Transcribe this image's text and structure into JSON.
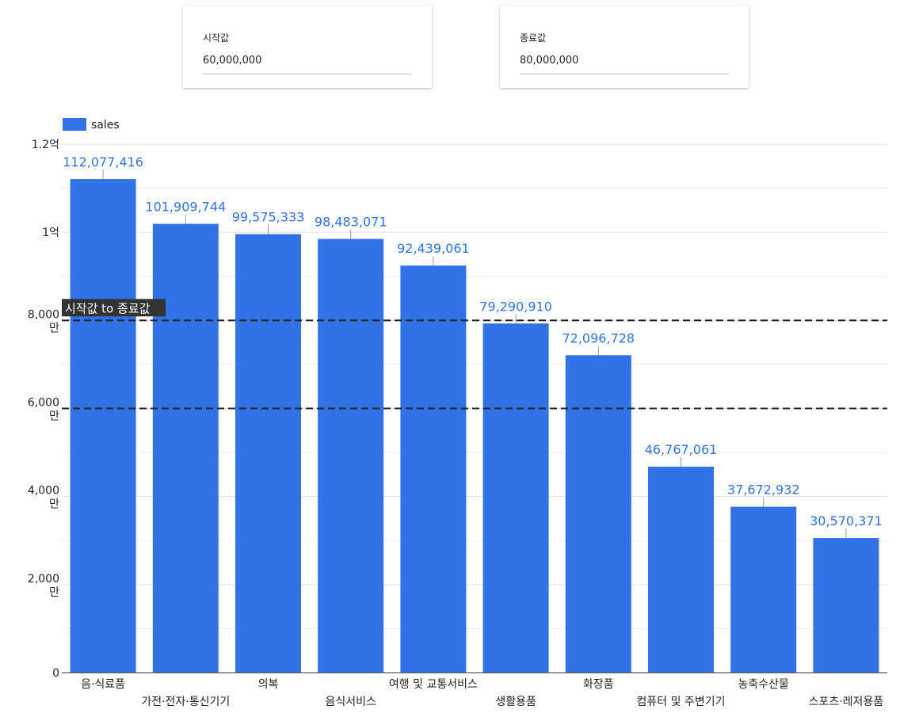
{
  "controls": {
    "start": {
      "label": "시작값",
      "value": "60,000,000"
    },
    "end": {
      "label": "종료값",
      "value": "80,000,000"
    }
  },
  "colors": {
    "bar": "#3173e7",
    "data_label": "#3173e7",
    "grid": "#e0e0e0",
    "axis": "#333333",
    "range_line": "#222222"
  },
  "chart_data": {
    "type": "bar",
    "legend": {
      "position": "top-left",
      "entries": [
        "sales"
      ]
    },
    "categories": [
      "음·식료품",
      "가전·전자·통신기기",
      "의복",
      "음식서비스",
      "여행 및 교통서비스",
      "생활용품",
      "화장품",
      "컴퓨터 및 주변기기",
      "농축수산물",
      "스포츠·레저용품"
    ],
    "series": [
      {
        "name": "sales",
        "values": [
          112077416,
          101909744,
          99575333,
          98483071,
          92439061,
          79290910,
          72096728,
          46767061,
          37672932,
          30570371
        ]
      }
    ],
    "value_labels": [
      "112,077,416",
      "101,909,744",
      "99,575,333",
      "98,483,071",
      "92,439,061",
      "79,290,910",
      "72,096,728",
      "46,767,061",
      "37,672,932",
      "30,570,371"
    ],
    "ylim": [
      0,
      120000000
    ],
    "yticks": [
      {
        "value": 0,
        "label": [
          "0"
        ]
      },
      {
        "value": 20000000,
        "label": [
          "2,000",
          "만"
        ]
      },
      {
        "value": 40000000,
        "label": [
          "4,000",
          "만"
        ]
      },
      {
        "value": 60000000,
        "label": [
          "6,000",
          "만"
        ]
      },
      {
        "value": 80000000,
        "label": [
          "8,000",
          "만"
        ]
      },
      {
        "value": 100000000,
        "label": [
          "1억"
        ]
      },
      {
        "value": 120000000,
        "label": [
          "1.2억"
        ]
      }
    ],
    "minor_gridlines": [
      10000000,
      30000000,
      50000000,
      70000000,
      90000000,
      110000000
    ],
    "grid": true,
    "range_lines": [
      60000000,
      80000000
    ],
    "range_annotation": "시작값 to 종료값"
  }
}
